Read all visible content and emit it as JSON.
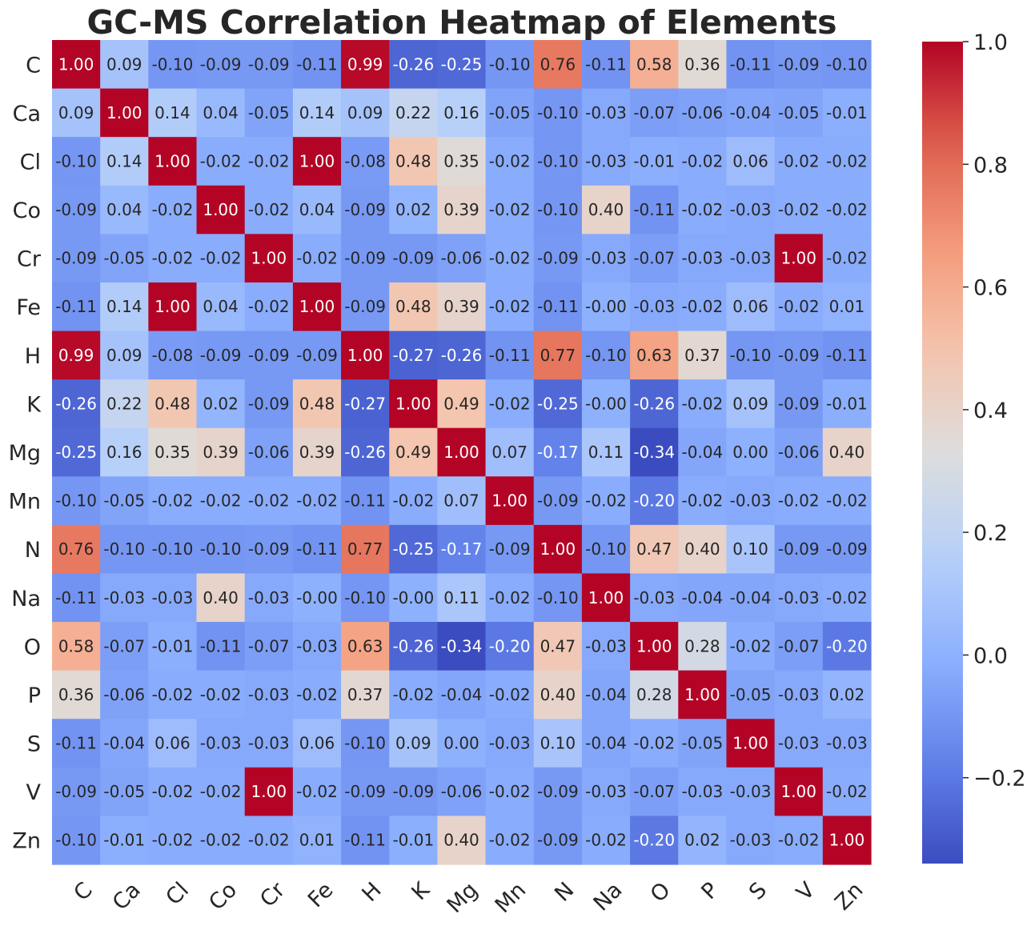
{
  "chart_data": {
    "type": "heatmap",
    "title": "GC-MS Correlation Heatmap of Elements",
    "xlabel": "",
    "ylabel": "",
    "labels": [
      "C",
      "Ca",
      "Cl",
      "Co",
      "Cr",
      "Fe",
      "H",
      "K",
      "Mg",
      "Mn",
      "N",
      "Na",
      "O",
      "P",
      "S",
      "V",
      "Zn"
    ],
    "matrix": [
      [
        1.0,
        0.09,
        -0.1,
        -0.09,
        -0.09,
        -0.11,
        0.99,
        -0.26,
        -0.25,
        -0.1,
        0.76,
        -0.11,
        0.58,
        0.36,
        -0.11,
        -0.09,
        -0.1
      ],
      [
        0.09,
        1.0,
        0.14,
        0.04,
        -0.05,
        0.14,
        0.09,
        0.22,
        0.16,
        -0.05,
        -0.1,
        -0.03,
        -0.07,
        -0.06,
        -0.04,
        -0.05,
        -0.01
      ],
      [
        -0.1,
        0.14,
        1.0,
        -0.02,
        -0.02,
        1.0,
        -0.08,
        0.48,
        0.35,
        -0.02,
        -0.1,
        -0.03,
        -0.01,
        -0.02,
        0.06,
        -0.02,
        -0.02
      ],
      [
        -0.09,
        0.04,
        -0.02,
        1.0,
        -0.02,
        0.04,
        -0.09,
        0.02,
        0.39,
        -0.02,
        -0.1,
        0.4,
        -0.11,
        -0.02,
        -0.03,
        -0.02,
        -0.02
      ],
      [
        -0.09,
        -0.05,
        -0.02,
        -0.02,
        1.0,
        -0.02,
        -0.09,
        -0.09,
        -0.06,
        -0.02,
        -0.09,
        -0.03,
        -0.07,
        -0.03,
        -0.03,
        1.0,
        -0.02
      ],
      [
        -0.11,
        0.14,
        1.0,
        0.04,
        -0.02,
        1.0,
        -0.09,
        0.48,
        0.39,
        -0.02,
        -0.11,
        -0.0,
        -0.03,
        -0.02,
        0.06,
        -0.02,
        0.01
      ],
      [
        0.99,
        0.09,
        -0.08,
        -0.09,
        -0.09,
        -0.09,
        1.0,
        -0.27,
        -0.26,
        -0.11,
        0.77,
        -0.1,
        0.63,
        0.37,
        -0.1,
        -0.09,
        -0.11
      ],
      [
        -0.26,
        0.22,
        0.48,
        0.02,
        -0.09,
        0.48,
        -0.27,
        1.0,
        0.49,
        -0.02,
        -0.25,
        -0.0,
        -0.26,
        -0.02,
        0.09,
        -0.09,
        -0.01
      ],
      [
        -0.25,
        0.16,
        0.35,
        0.39,
        -0.06,
        0.39,
        -0.26,
        0.49,
        1.0,
        0.07,
        -0.17,
        0.11,
        -0.34,
        -0.04,
        0.0,
        -0.06,
        0.4
      ],
      [
        -0.1,
        -0.05,
        -0.02,
        -0.02,
        -0.02,
        -0.02,
        -0.11,
        -0.02,
        0.07,
        1.0,
        -0.09,
        -0.02,
        -0.2,
        -0.02,
        -0.03,
        -0.02,
        -0.02
      ],
      [
        0.76,
        -0.1,
        -0.1,
        -0.1,
        -0.09,
        -0.11,
        0.77,
        -0.25,
        -0.17,
        -0.09,
        1.0,
        -0.1,
        0.47,
        0.4,
        0.1,
        -0.09,
        -0.09
      ],
      [
        -0.11,
        -0.03,
        -0.03,
        0.4,
        -0.03,
        -0.0,
        -0.1,
        -0.0,
        0.11,
        -0.02,
        -0.1,
        1.0,
        -0.03,
        -0.04,
        -0.04,
        -0.03,
        -0.02
      ],
      [
        0.58,
        -0.07,
        -0.01,
        -0.11,
        -0.07,
        -0.03,
        0.63,
        -0.26,
        -0.34,
        -0.2,
        0.47,
        -0.03,
        1.0,
        0.28,
        -0.02,
        -0.07,
        -0.2
      ],
      [
        0.36,
        -0.06,
        -0.02,
        -0.02,
        -0.03,
        -0.02,
        0.37,
        -0.02,
        -0.04,
        -0.02,
        0.4,
        -0.04,
        0.28,
        1.0,
        -0.05,
        -0.03,
        0.02
      ],
      [
        -0.11,
        -0.04,
        0.06,
        -0.03,
        -0.03,
        0.06,
        -0.1,
        0.09,
        0.0,
        -0.03,
        0.1,
        -0.04,
        -0.02,
        -0.05,
        1.0,
        -0.03,
        -0.03
      ],
      [
        -0.09,
        -0.05,
        -0.02,
        -0.02,
        1.0,
        -0.02,
        -0.09,
        -0.09,
        -0.06,
        -0.02,
        -0.09,
        -0.03,
        -0.07,
        -0.03,
        -0.03,
        1.0,
        -0.02
      ],
      [
        -0.1,
        -0.01,
        -0.02,
        -0.02,
        -0.02,
        0.01,
        -0.11,
        -0.01,
        0.4,
        -0.02,
        -0.09,
        -0.02,
        -0.2,
        0.02,
        -0.03,
        -0.02,
        1.0
      ]
    ],
    "colormap": "coolwarm",
    "vmin": -0.34,
    "vmax": 1.0,
    "colorbar": {
      "ticks": [
        1.0,
        0.8,
        0.6,
        0.4,
        0.2,
        0.0,
        -0.2
      ],
      "tick_labels": [
        "1.0",
        "0.8",
        "0.6",
        "0.4",
        "0.2",
        "0.0",
        "−0.2"
      ]
    },
    "annotation_format": "2 decimals",
    "grid": false,
    "legend": "colorbar-right"
  }
}
